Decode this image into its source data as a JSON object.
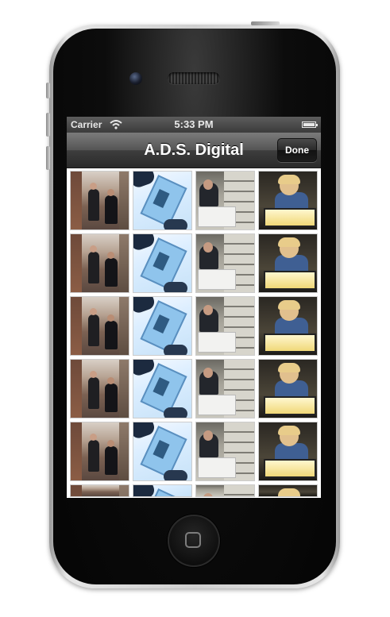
{
  "status_bar": {
    "carrier": "Carrier",
    "time": "5:33 PM",
    "wifi_icon": "wifi-icon",
    "battery_icon": "battery-icon",
    "battery_level": 1.0
  },
  "nav_bar": {
    "title": "A.D.S. Digital",
    "done_label": "Done"
  },
  "gallery": {
    "columns": 4,
    "visible_full_rows": 5,
    "has_partial_row": true,
    "thumbnail_kinds": [
      "street-photo",
      "film-negative",
      "archive-shelves",
      "lightbox-inspection"
    ]
  },
  "colors": {
    "navbar_dark": "#2a2a2a",
    "statusbar": "#4a4a4a",
    "screen_bg": "#ffffff"
  }
}
